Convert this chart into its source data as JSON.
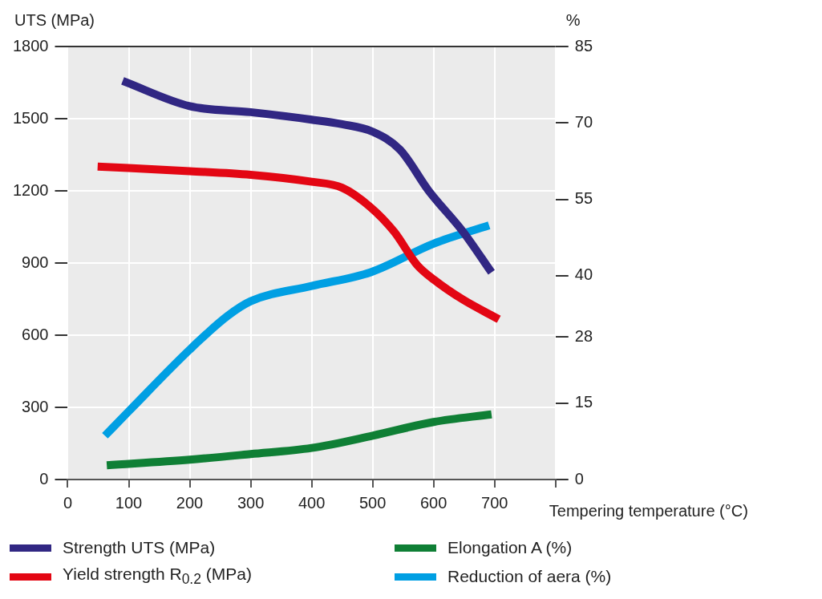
{
  "chart_data": {
    "type": "line",
    "ylabel": "UTS (MPa)",
    "y2label": "%",
    "xlabel": "Tempering temperature (°C)",
    "xlim": [
      0,
      800
    ],
    "xticks": [
      0,
      100,
      200,
      300,
      400,
      500,
      600,
      700,
      {
        "value": 800,
        "label": null
      }
    ],
    "ylim": [
      0,
      1800
    ],
    "yticks": [
      0,
      300,
      600,
      900,
      1200,
      1500,
      1800
    ],
    "y2lim": [
      0,
      85
    ],
    "y2ticks": [
      0,
      15,
      28,
      40,
      55,
      70,
      85
    ],
    "grid": true,
    "legend": "bottom",
    "marker": "none",
    "line_style": "solid",
    "series": [
      {
        "name": "Strength UTS (MPa)",
        "color": "#312783",
        "x": [
          90,
          200,
          300,
          400,
          450,
          500,
          545,
          592,
          648,
          695
        ],
        "values": [
          1657,
          1552,
          1527,
          1496,
          1477,
          1446,
          1371,
          1200,
          1031,
          861
        ]
      },
      {
        "name": "Yield strength R$_{0.2}$ (MPa)",
        "color": "#e30613",
        "x": [
          49,
          200,
          300,
          400,
          450,
          497,
          535,
          573,
          601,
          648,
          707
        ],
        "values": [
          1301,
          1282,
          1267,
          1238,
          1213,
          1131,
          1031,
          892,
          830,
          748,
          666
        ]
      },
      {
        "name": "Elongation A (%)",
        "color": "#0f7f35",
        "axis": "y2",
        "x": [
          64,
          200,
          300,
          400,
          500,
          600,
          695
        ],
        "values": [
          2.8,
          3.9,
          5.0,
          6.2,
          8.6,
          11.3,
          12.8
        ]
      },
      {
        "name": "Reduction of aera (%)",
        "color": "#009fe3",
        "axis": "y2",
        "x": [
          61,
          100,
          200,
          262,
          300,
          400,
          497,
          600,
          691
        ],
        "values": [
          8.6,
          13.4,
          25.5,
          32.1,
          35.0,
          38.0,
          40.7,
          46.3,
          49.9
        ]
      }
    ]
  }
}
